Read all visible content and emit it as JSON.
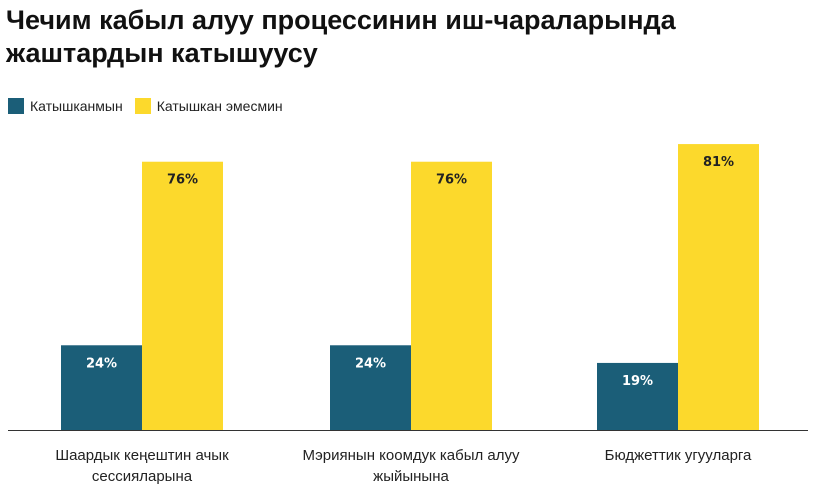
{
  "chart_data": {
    "type": "bar",
    "title": "Чечим кабыл алуу процессинин иш-чараларында жаштардын катышуусу",
    "categories": [
      [
        "Шаардык кеңештин ачык",
        "сессияларына"
      ],
      [
        "Мэриянын коомдук кабыл алуу",
        "жыйынына"
      ],
      [
        "Бюджеттик угууларга"
      ]
    ],
    "series": [
      {
        "name": "Катышканмын",
        "color": "#1b5e78",
        "label_color": "#ffffff",
        "values": [
          24,
          24,
          19
        ],
        "labels": [
          "24%",
          "24%",
          "19%"
        ]
      },
      {
        "name": "Катышкан эмесмин",
        "color": "#fcd92c",
        "label_color": "#222222",
        "values": [
          76,
          76,
          81
        ],
        "labels": [
          "76%",
          "76%",
          "81%"
        ]
      }
    ],
    "ylim": [
      0,
      100
    ],
    "grid": false,
    "legend_position": "top-left"
  }
}
